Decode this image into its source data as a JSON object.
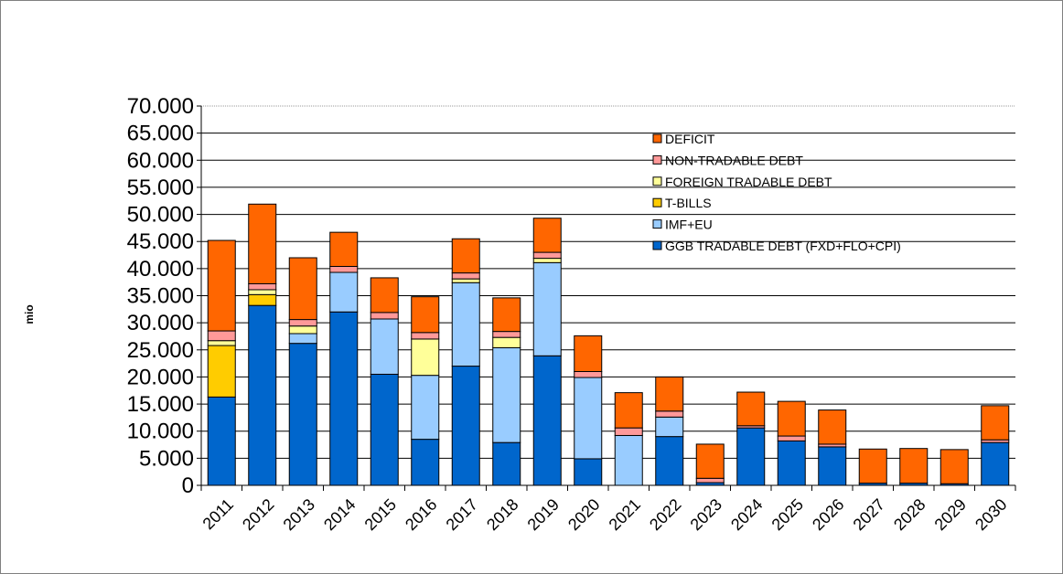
{
  "chart_data": {
    "type": "bar",
    "stacked": true,
    "ylabel": "mio",
    "ylim": [
      0,
      70000
    ],
    "ytick_step": 5000,
    "yticks": [
      "0",
      "5.000",
      "10.000",
      "15.000",
      "20.000",
      "25.000",
      "30.000",
      "35.000",
      "40.000",
      "45.000",
      "50.000",
      "55.000",
      "60.000",
      "65.000",
      "70.000"
    ],
    "grid": true,
    "legend_position": "top-right",
    "categories": [
      "2011",
      "2012",
      "2013",
      "2014",
      "2015",
      "2016",
      "2017",
      "2018",
      "2019",
      "2020",
      "2021",
      "2022",
      "2023",
      "2024",
      "2025",
      "2026",
      "2027",
      "2028",
      "2029",
      "2030"
    ],
    "series": [
      {
        "name": "GGB TRADABLE DEBT (FXD+FLO+CPI)",
        "color": "#0066cc",
        "values": [
          16300,
          33200,
          26200,
          32000,
          20500,
          8500,
          22000,
          7900,
          23900,
          4900,
          0,
          9000,
          500,
          10600,
          8200,
          7100,
          400,
          400,
          300,
          7900
        ]
      },
      {
        "name": "IMF+EU",
        "color": "#99ccff",
        "values": [
          0,
          0,
          1800,
          7300,
          10200,
          11800,
          15400,
          17500,
          17200,
          15000,
          9200,
          3600,
          0,
          0,
          0,
          0,
          0,
          0,
          0,
          0
        ]
      },
      {
        "name": "T-BILLS",
        "color": "#ffcc00",
        "values": [
          9500,
          2000,
          0,
          0,
          0,
          0,
          0,
          0,
          0,
          0,
          0,
          0,
          0,
          0,
          0,
          0,
          0,
          0,
          0,
          0
        ]
      },
      {
        "name": "FOREIGN TRADABLE DEBT",
        "color": "#ffff99",
        "values": [
          900,
          900,
          1400,
          0,
          0,
          6700,
          700,
          1900,
          800,
          0,
          0,
          0,
          0,
          0,
          0,
          0,
          0,
          0,
          0,
          0
        ]
      },
      {
        "name": "NON-TRADABLE DEBT",
        "color": "#ff9999",
        "values": [
          1800,
          1100,
          1200,
          1100,
          1200,
          1200,
          1100,
          1100,
          1100,
          1100,
          1400,
          1100,
          800,
          400,
          900,
          500,
          0,
          0,
          0,
          500
        ]
      },
      {
        "name": "DEFICIT",
        "color": "#ff6600",
        "values": [
          16700,
          14700,
          11400,
          6300,
          6400,
          6600,
          6300,
          6200,
          6300,
          6600,
          6500,
          6300,
          6300,
          6200,
          6400,
          6300,
          6300,
          6400,
          6300,
          6300
        ]
      }
    ]
  }
}
